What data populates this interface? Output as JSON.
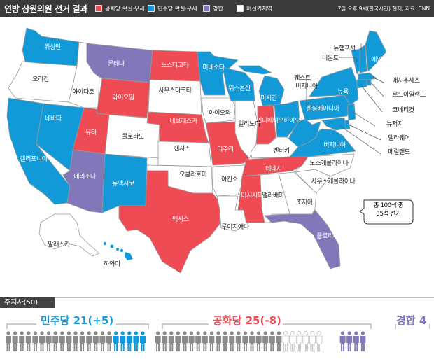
{
  "header": {
    "title": "연방 상원의원 선거 결과",
    "source": "7일 오후 9시(한국시간) 현재, 자료: CNN"
  },
  "legend": [
    {
      "label": "공화당 확실·우세",
      "color": "#ef4b54"
    },
    {
      "label": "민주당 확실·우세",
      "color": "#129ad8"
    },
    {
      "label": "경합",
      "color": "#8277b9"
    },
    {
      "label": "비선거지역",
      "color": "#ffffff"
    }
  ],
  "colors": {
    "rep": "#ef4b54",
    "dem": "#129ad8",
    "toss": "#8277b9",
    "none": "#ffffff",
    "border": "#9a9a9a"
  },
  "states": {
    "wa": "워싱턴",
    "or": "오리건",
    "ca": "캘리포니아",
    "nv": "네바다",
    "id": "아이다호",
    "mt": "몬태나",
    "wy": "와이오밍",
    "ut": "유타",
    "az": "애리조나",
    "co": "콜로라도",
    "nm": "뉴멕시코",
    "nd": "노스다코타",
    "sd": "사우스다코타",
    "ne": "네브래스카",
    "ks": "캔자스",
    "ok": "오클라호마",
    "tx": "텍사스",
    "mn": "미네소타",
    "ia": "아이오와",
    "mo": "미주리",
    "ar": "아칸소",
    "la": "루이지애나",
    "wi": "위스콘신",
    "il": "일리노이",
    "mi": "미시간",
    "in": "인디애나",
    "oh": "오하이오",
    "ky": "켄터키",
    "tn": "테네시",
    "ms": "미시시피",
    "al": "앨라배마",
    "ga": "조지아",
    "fl": "플로리다",
    "sc": "사우스캐롤라이나",
    "nc": "노스캐롤라이나",
    "va": "버지니아",
    "wv": "웨스트버지니아",
    "pa": "펜실베이니아",
    "ny": "뉴욕",
    "vt": "버몬트",
    "nh": "뉴햄프셔",
    "me": "메인",
    "ma": "매사추세츠",
    "ri": "로드아일랜드",
    "ct": "코네티컷",
    "nj": "뉴저지",
    "de": "델라웨어",
    "md": "메릴랜드",
    "ak": "알래스카",
    "hi": "하와이"
  },
  "callout": "총 100석 중 35석 선거",
  "governors": {
    "tab": "주지사(50)",
    "dem_label": "민주당 21(+5)",
    "rep_label": "공화당 25(-8)",
    "toss_label": "경합 4",
    "dem_seats": 21,
    "rep_seats": 25,
    "toss_seats": 4,
    "dem_nonelection": 16,
    "dem_elected": 5,
    "rep_nonelection": 19,
    "rep_open": 6
  }
}
